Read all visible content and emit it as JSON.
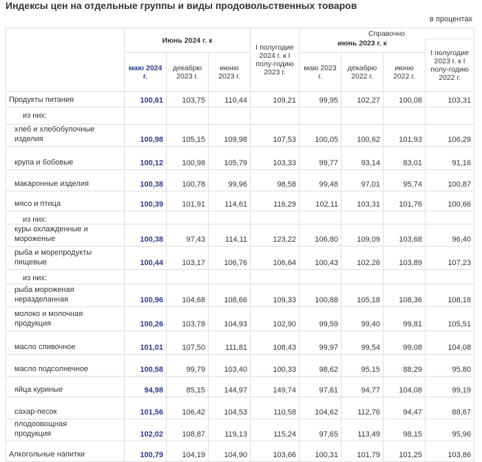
{
  "title": "Индексы цен на отдельные группы и виды продовольственных товаров",
  "unit": "в процентах",
  "header": {
    "group_2024": "Июнь 2024 г. к",
    "half_2024": "I полугодие 2024 г. к I полу-годию 2023 г.",
    "reference": "Справочно",
    "group_2023": "июнь 2023 г. к",
    "half_2023": "I полугодие 2023 г. к I полу-годию 2022 г.",
    "columns": [
      "маю 2024 г.",
      "декабрю 2023 г.",
      "июню 2023 г.",
      "маю 2023 г.",
      "декабрю 2022 г.",
      "июню 2022 г."
    ]
  },
  "rows": [
    {
      "label": "Продукты питания",
      "values": [
        "100,61",
        "103,75",
        "110,44",
        "109,21",
        "99,95",
        "102,27",
        "100,08",
        "103,31"
      ]
    },
    {
      "label": "из них:"
    },
    {
      "label": "хлеб и хлебобулочные изделия",
      "values": [
        "100,98",
        "105,15",
        "109,98",
        "107,53",
        "100,05",
        "100,62",
        "101,93",
        "106,29"
      ]
    },
    {
      "label": "крупа и бобовые",
      "values": [
        "100,12",
        "100,98",
        "105,79",
        "103,33",
        "99,77",
        "93,14",
        "83,01",
        "91,16"
      ]
    },
    {
      "label": "макаронные изделия",
      "values": [
        "100,38",
        "100,78",
        "99,96",
        "98,58",
        "99,48",
        "97,01",
        "95,74",
        "100,87"
      ]
    },
    {
      "label": "мясо и птица",
      "values": [
        "100,39",
        "101,91",
        "114,61",
        "116,29",
        "102,11",
        "103,31",
        "101,76",
        "100,66"
      ]
    },
    {
      "label": "из них:"
    },
    {
      "label": "куры охлажденные и мороженые",
      "values": [
        "100,38",
        "97,43",
        "114,11",
        "123,22",
        "106,80",
        "109,09",
        "103,68",
        "96,40"
      ]
    },
    {
      "label": "рыба и морепродукты пищевые",
      "values": [
        "100,44",
        "103,17",
        "106,76",
        "106,64",
        "100,43",
        "102,26",
        "103,89",
        "107,23"
      ]
    },
    {
      "label": "из них:"
    },
    {
      "label": "рыба мороженая неразделанная",
      "values": [
        "100,96",
        "104,68",
        "108,66",
        "109,33",
        "100,88",
        "105,18",
        "108,36",
        "108,18"
      ]
    },
    {
      "label": "молоко и молочная продукция",
      "values": [
        "100,26",
        "103,78",
        "104,93",
        "102,90",
        "99,59",
        "99,40",
        "99,81",
        "105,51"
      ]
    },
    {
      "label": "масло сливочное",
      "values": [
        "101,01",
        "107,50",
        "111,81",
        "108,43",
        "99,97",
        "99,54",
        "99,08",
        "104,08"
      ]
    },
    {
      "label": "масло подсолнечное",
      "values": [
        "100,58",
        "99,79",
        "103,40",
        "100,33",
        "98,62",
        "95,15",
        "88,29",
        "95,80"
      ]
    },
    {
      "label": "яйца куриные",
      "values": [
        "94,98",
        "85,15",
        "144,97",
        "149,74",
        "97,61",
        "94,77",
        "104,08",
        "99,19"
      ]
    },
    {
      "label": "сахар-песок",
      "values": [
        "101,56",
        "106,42",
        "104,53",
        "110,58",
        "104,62",
        "112,76",
        "94,47",
        "88,67"
      ]
    },
    {
      "label": "плодоовощная продукция",
      "values": [
        "102,02",
        "108,87",
        "119,13",
        "115,24",
        "97,65",
        "113,49",
        "98,15",
        "95,96"
      ]
    },
    {
      "label": "Алкогольные напитки",
      "values": [
        "100,79",
        "104,19",
        "104,90",
        "103,66",
        "100,31",
        "101,79",
        "101,25",
        "103,86"
      ]
    }
  ]
}
